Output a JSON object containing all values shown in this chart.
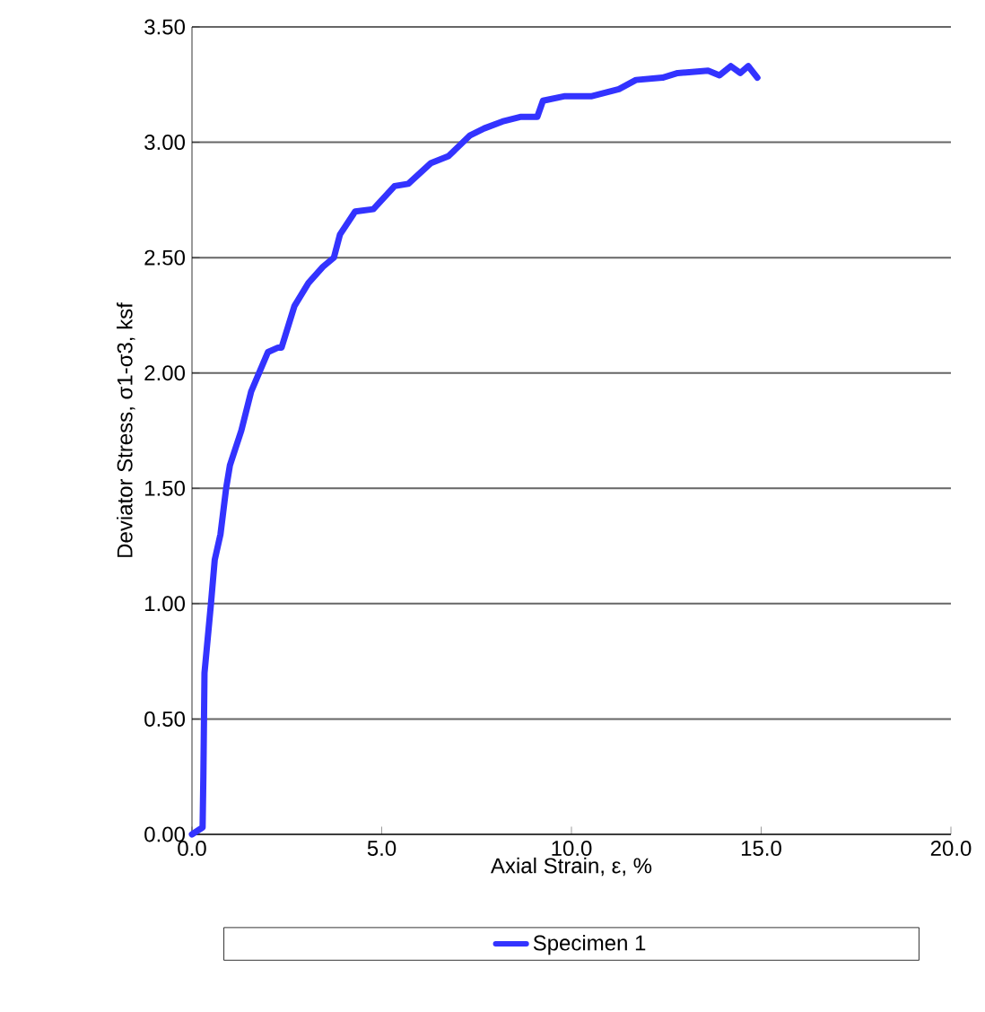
{
  "chart_data": {
    "type": "line",
    "xlabel": "Axial Strain, ε, %",
    "ylabel": "Deviator Stress, σ1-σ3, ksf",
    "xlim": [
      0,
      20
    ],
    "ylim": [
      0,
      3.5
    ],
    "xticks": [
      {
        "value": 0,
        "label": "0.0"
      },
      {
        "value": 5,
        "label": "5.0"
      },
      {
        "value": 10,
        "label": "10.0"
      },
      {
        "value": 15,
        "label": "15.0"
      },
      {
        "value": 20,
        "label": "20.0"
      }
    ],
    "yticks": [
      {
        "value": 0,
        "label": "0.00"
      },
      {
        "value": 0.5,
        "label": "0.50"
      },
      {
        "value": 1,
        "label": "1.00"
      },
      {
        "value": 1.5,
        "label": "1.50"
      },
      {
        "value": 2,
        "label": "2.00"
      },
      {
        "value": 2.5,
        "label": "2.50"
      },
      {
        "value": 3,
        "label": "3.00"
      },
      {
        "value": 3.5,
        "label": "3.50"
      }
    ],
    "grid": "y",
    "legend": "bottom",
    "marker": "none",
    "line_style": "solid",
    "series": [
      {
        "name": "Specimen 1",
        "color": "#3333ff",
        "x": [
          0,
          0.28,
          0.3,
          0.33,
          0.5,
          0.6,
          0.75,
          0.9,
          1.0,
          1.3,
          1.56,
          2.0,
          2.27,
          2.36,
          2.7,
          3.07,
          3.45,
          3.74,
          3.9,
          4.3,
          4.78,
          5.34,
          5.7,
          6.3,
          6.76,
          7.33,
          7.7,
          8.18,
          8.65,
          9.1,
          9.25,
          9.83,
          10.54,
          11.25,
          11.7,
          12.4,
          12.8,
          13.6,
          13.9,
          14.2,
          14.45,
          14.66,
          14.9
        ],
        "values": [
          0,
          0.03,
          0.25,
          0.7,
          1.0,
          1.19,
          1.3,
          1.5,
          1.6,
          1.75,
          1.92,
          2.09,
          2.11,
          2.11,
          2.29,
          2.39,
          2.46,
          2.5,
          2.6,
          2.7,
          2.71,
          2.81,
          2.82,
          2.91,
          2.94,
          3.03,
          3.06,
          3.09,
          3.11,
          3.11,
          3.18,
          3.2,
          3.2,
          3.23,
          3.27,
          3.28,
          3.3,
          3.31,
          3.29,
          3.33,
          3.3,
          3.33,
          3.28
        ]
      }
    ]
  }
}
